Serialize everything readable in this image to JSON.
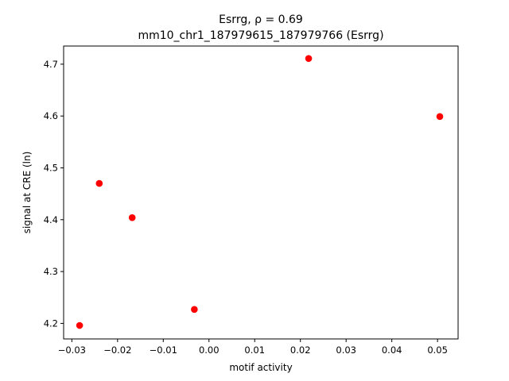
{
  "chart_data": {
    "type": "scatter",
    "title_line1": "Esrrg, ρ = 0.69",
    "title_line2": "mm10_chr1_187979615_187979766 (Esrrg)",
    "xlabel": "motif activity",
    "ylabel": "signal at CRE (ln)",
    "xlim": [
      -0.0318,
      0.0545
    ],
    "ylim": [
      4.17,
      4.735
    ],
    "xticks": [
      -0.03,
      -0.02,
      -0.01,
      0.0,
      0.01,
      0.02,
      0.03,
      0.04,
      0.05
    ],
    "xtick_labels": [
      "−0.03",
      "−0.02",
      "−0.01",
      "0.00",
      "0.01",
      "0.02",
      "0.03",
      "0.04",
      "0.05"
    ],
    "yticks": [
      4.2,
      4.3,
      4.4,
      4.5,
      4.6,
      4.7
    ],
    "ytick_labels": [
      "4.2",
      "4.3",
      "4.4",
      "4.5",
      "4.6",
      "4.7"
    ],
    "grid": false,
    "marker_color": "#ff0000",
    "points": [
      {
        "x": -0.0283,
        "y": 4.196
      },
      {
        "x": -0.024,
        "y": 4.47
      },
      {
        "x": -0.0168,
        "y": 4.404
      },
      {
        "x": -0.0032,
        "y": 4.227
      },
      {
        "x": 0.0218,
        "y": 4.711
      },
      {
        "x": 0.0505,
        "y": 4.599
      }
    ]
  }
}
